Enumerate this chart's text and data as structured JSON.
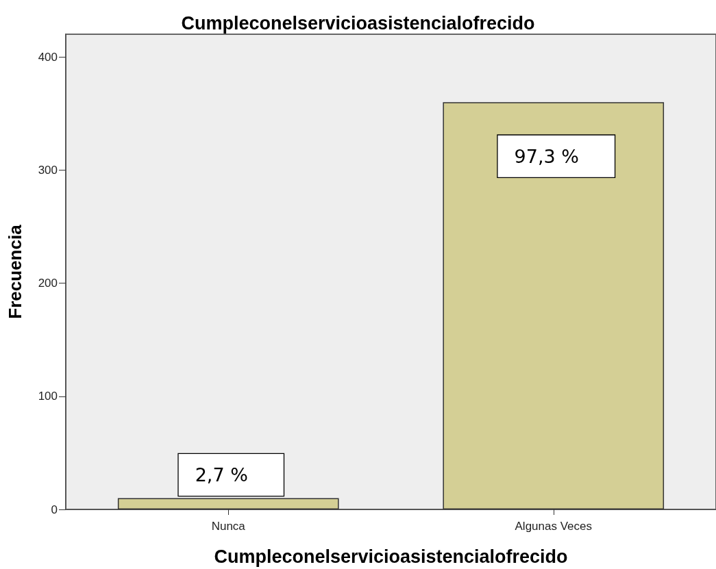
{
  "chart_data": {
    "type": "bar",
    "title": "Cumpleconelservicioasistencialofrecido",
    "xlabel": "Cumpleconelservicioasistencialofrecido",
    "ylabel": "Frecuencia",
    "categories": [
      "Nunca",
      "Algunas Veces"
    ],
    "values": [
      10,
      360
    ],
    "color": "#d4cf95",
    "annotations": [
      {
        "text": "2,7 %",
        "x": "Nunca",
        "y": 10
      },
      {
        "text": "97,3 %",
        "x": "Algunas Veces",
        "y": 360
      }
    ],
    "ylim": [
      0,
      420
    ],
    "yticks": [
      0,
      100,
      200,
      300,
      400
    ]
  }
}
